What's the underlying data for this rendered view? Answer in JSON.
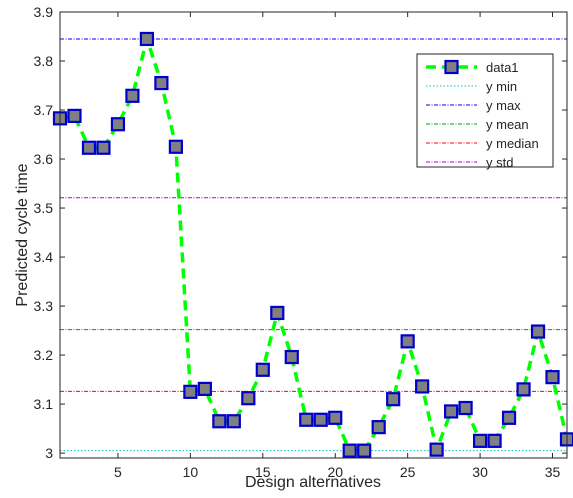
{
  "chart_data": {
    "type": "line",
    "xlabel": "Design alternatives",
    "ylabel": "Predicted cycle time",
    "xlim": [
      1,
      36
    ],
    "ylim": [
      2.99,
      3.9
    ],
    "xticks": [
      5,
      10,
      15,
      20,
      25,
      30,
      35
    ],
    "yticks": [
      3,
      3.1,
      3.2,
      3.3,
      3.4,
      3.5,
      3.6,
      3.7,
      3.8,
      3.9
    ],
    "xtick_labels": [
      "5",
      "10",
      "15",
      "20",
      "25",
      "30",
      "35"
    ],
    "ytick_labels": [
      "3",
      "3.1",
      "3.2",
      "3.3",
      "3.4",
      "3.5",
      "3.6",
      "3.7",
      "3.8",
      "3.9"
    ],
    "grid": false,
    "legend_position": "top-right",
    "series": [
      {
        "name": "data1",
        "color": "#00ff00",
        "line_style": "dashed",
        "marker": "square",
        "marker_face": "#808080",
        "marker_edge": "#0000cc",
        "x": [
          1,
          2,
          3,
          4,
          5,
          6,
          7,
          8,
          9,
          10,
          11,
          12,
          13,
          14,
          15,
          16,
          17,
          18,
          19,
          20,
          21,
          22,
          23,
          24,
          25,
          26,
          27,
          28,
          29,
          30,
          31,
          32,
          33,
          34,
          35,
          36
        ],
        "y": [
          3.683,
          3.688,
          3.623,
          3.623,
          3.671,
          3.729,
          3.845,
          3.755,
          3.625,
          3.125,
          3.131,
          3.065,
          3.065,
          3.112,
          3.17,
          3.286,
          3.196,
          3.068,
          3.068,
          3.072,
          3.005,
          3.005,
          3.053,
          3.11,
          3.228,
          3.136,
          3.007,
          3.085,
          3.092,
          3.025,
          3.025,
          3.072,
          3.13,
          3.248,
          3.155,
          3.028
        ]
      }
    ],
    "reference_lines": [
      {
        "name": "y min",
        "value": 3.005,
        "color": "#00bfbf"
      },
      {
        "name": "y max",
        "value": 3.845,
        "color": "#0000ff"
      },
      {
        "name": "y mean",
        "value": 3.252,
        "color": "#00a000"
      },
      {
        "name": "y median",
        "value": 3.126,
        "color": "#ff0000"
      },
      {
        "name": "y std",
        "value": 3.521,
        "color": "#bf00bf"
      }
    ]
  }
}
